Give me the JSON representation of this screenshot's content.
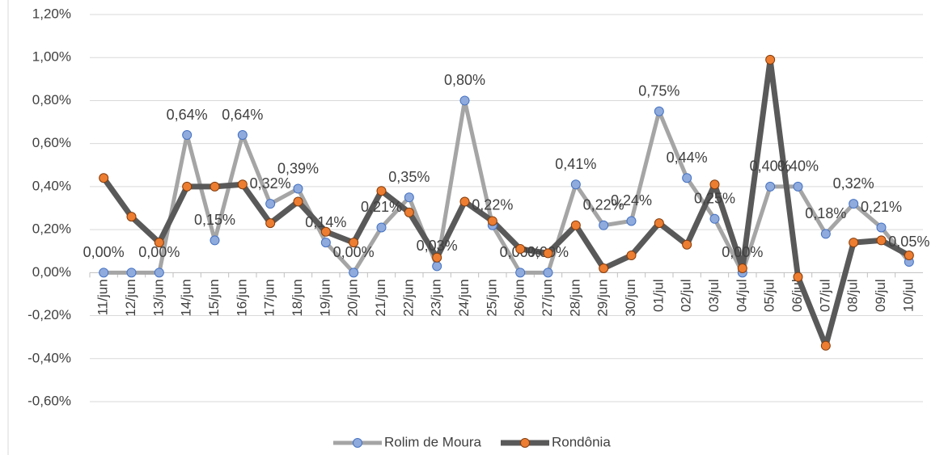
{
  "chart_data": {
    "type": "line",
    "categories": [
      "11/jun",
      "12/jun",
      "13/jun",
      "14/jun",
      "15/jun",
      "16/jun",
      "17/jun",
      "18/jun",
      "19/jun",
      "20/jun",
      "21/jun",
      "22/jun",
      "23/jun",
      "24/jun",
      "25/jun",
      "26/jun",
      "27/jun",
      "28/jun",
      "29/jun",
      "30/jun",
      "01/jul",
      "02/jul",
      "03/jul",
      "04/jul",
      "05/jul",
      "06/jul",
      "07/jul",
      "08/jul",
      "09/jul",
      "10/jul"
    ],
    "series": [
      {
        "name": "Rolim de Moura",
        "color": "#a5a5a5",
        "marker_color": "#8faadc",
        "values": [
          0,
          0,
          0,
          0.64,
          0.15,
          0.64,
          0.32,
          0.39,
          0.14,
          0,
          0.21,
          0.35,
          0.03,
          0.8,
          0.22,
          0,
          0,
          0.41,
          0.22,
          0.24,
          0.75,
          0.44,
          0.25,
          0,
          0.4,
          0.4,
          0.18,
          0.32,
          0.21,
          0.05
        ],
        "value_labels": [
          "0,00%",
          null,
          "0,00%",
          "0,64%",
          "0,15%",
          "0,64%",
          "0,32%",
          "0,39%",
          "0,14%",
          "0,00%",
          "0,21%",
          "0,35%",
          "0,03%",
          "0,80%",
          "0,22%",
          "0,00%",
          "0,00%",
          "0,41%",
          "0,22%",
          "0,24%",
          "0,75%",
          "0,44%",
          "0,25%",
          "0,00%",
          "0,40%",
          "0,40%",
          "0,18%",
          "0,32%",
          "0,21%",
          "0,05%"
        ]
      },
      {
        "name": "Rondônia",
        "color": "#595959",
        "marker_color": "#ed7d31",
        "values": [
          0.44,
          0.26,
          0.14,
          0.4,
          0.4,
          0.41,
          0.23,
          0.33,
          0.19,
          0.14,
          0.38,
          0.28,
          0.07,
          0.33,
          0.24,
          0.11,
          0.09,
          0.22,
          0.02,
          0.08,
          0.23,
          0.13,
          0.41,
          0.02,
          0.99,
          -0.02,
          -0.34,
          0.14,
          0.15,
          0.08
        ]
      }
    ],
    "ylim": [
      -0.6,
      1.2
    ],
    "yticks": [
      {
        "value": -0.6,
        "label": "-0,60%"
      },
      {
        "value": -0.4,
        "label": "-0,40%"
      },
      {
        "value": -0.2,
        "label": "-0,20%"
      },
      {
        "value": 0,
        "label": "0,00%"
      },
      {
        "value": 0.2,
        "label": "0,20%"
      },
      {
        "value": 0.4,
        "label": "0,40%"
      },
      {
        "value": 0.6,
        "label": "0,60%"
      },
      {
        "value": 0.8,
        "label": "0,80%"
      },
      {
        "value": 1.0,
        "label": "1,00%"
      },
      {
        "value": 1.2,
        "label": "1,20%"
      }
    ],
    "grid": true,
    "legend": "bottom"
  }
}
